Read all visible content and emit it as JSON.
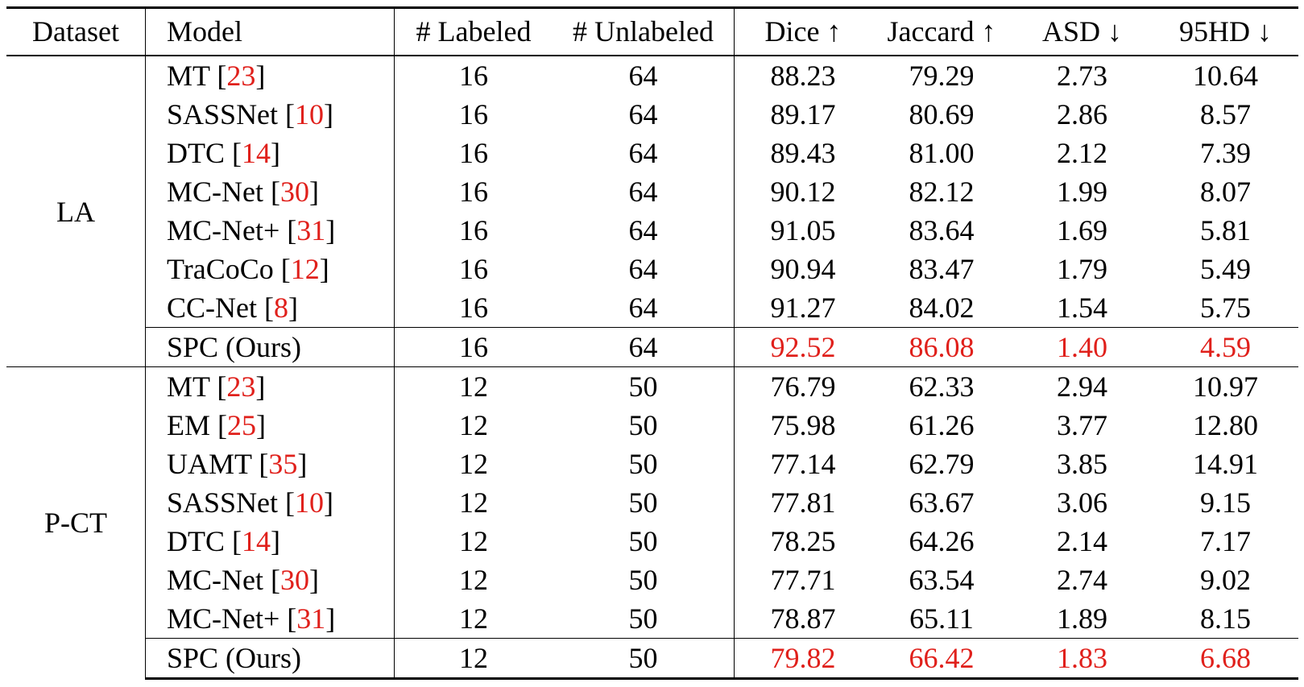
{
  "headers": {
    "dataset": "Dataset",
    "model": "Model",
    "labeled": "# Labeled",
    "unlabeled": "# Unlabeled",
    "dice": "Dice ↑",
    "jaccard": "Jaccard ↑",
    "asd": "ASD ↓",
    "hd95": "95HD ↓"
  },
  "colors": {
    "citation": "#e0201b",
    "ours_best": "#e0201b"
  },
  "groups": [
    {
      "dataset": "LA",
      "rows": [
        {
          "name": "MT",
          "cite": "23",
          "labeled": "16",
          "unlabeled": "64",
          "dice": "88.23",
          "jaccard": "79.29",
          "asd": "2.73",
          "hd95": "10.64",
          "bold": [],
          "ours": false
        },
        {
          "name": "SASSNet",
          "cite": "10",
          "labeled": "16",
          "unlabeled": "64",
          "dice": "89.17",
          "jaccard": "80.69",
          "asd": "2.86",
          "hd95": "8.57",
          "bold": [],
          "ours": false
        },
        {
          "name": "DTC",
          "cite": "14",
          "labeled": "16",
          "unlabeled": "64",
          "dice": "89.43",
          "jaccard": "81.00",
          "asd": "2.12",
          "hd95": "7.39",
          "bold": [],
          "ours": false
        },
        {
          "name": "MC-Net",
          "cite": "30",
          "labeled": "16",
          "unlabeled": "64",
          "dice": "90.12",
          "jaccard": "82.12",
          "asd": "1.99",
          "hd95": "8.07",
          "bold": [],
          "ours": false
        },
        {
          "name": "MC-Net+",
          "cite": "31",
          "labeled": "16",
          "unlabeled": "64",
          "dice": "91.05",
          "jaccard": "83.64",
          "asd": "1.69",
          "hd95": "5.81",
          "bold": [],
          "ours": false
        },
        {
          "name": "TraCoCo",
          "cite": "12",
          "labeled": "16",
          "unlabeled": "64",
          "dice": "90.94",
          "jaccard": "83.47",
          "asd": "1.79",
          "hd95": "5.49",
          "bold": [
            "hd95"
          ],
          "ours": false
        },
        {
          "name": "CC-Net",
          "cite": "8",
          "labeled": "16",
          "unlabeled": "64",
          "dice": "91.27",
          "jaccard": "84.02",
          "asd": "1.54",
          "hd95": "5.75",
          "bold": [
            "dice",
            "jaccard",
            "asd"
          ],
          "ours": false
        },
        {
          "name": "SPC (Ours)",
          "cite": "",
          "labeled": "16",
          "unlabeled": "64",
          "dice": "92.52",
          "jaccard": "86.08",
          "asd": "1.40",
          "hd95": "4.59",
          "bold": [],
          "ours": true
        }
      ]
    },
    {
      "dataset": "P-CT",
      "rows": [
        {
          "name": "MT",
          "cite": "23",
          "labeled": "12",
          "unlabeled": "50",
          "dice": "76.79",
          "jaccard": "62.33",
          "asd": "2.94",
          "hd95": "10.97",
          "bold": [],
          "ours": false
        },
        {
          "name": "EM",
          "cite": "25",
          "labeled": "12",
          "unlabeled": "50",
          "dice": "75.98",
          "jaccard": "61.26",
          "asd": "3.77",
          "hd95": "12.80",
          "bold": [],
          "ours": false
        },
        {
          "name": "UAMT",
          "cite": "35",
          "labeled": "12",
          "unlabeled": "50",
          "dice": "77.14",
          "jaccard": "62.79",
          "asd": "3.85",
          "hd95": "14.91",
          "bold": [],
          "ours": false
        },
        {
          "name": "SASSNet",
          "cite": "10",
          "labeled": "12",
          "unlabeled": "50",
          "dice": "77.81",
          "jaccard": "63.67",
          "asd": "3.06",
          "hd95": "9.15",
          "bold": [],
          "ours": false
        },
        {
          "name": "DTC",
          "cite": "14",
          "labeled": "12",
          "unlabeled": "50",
          "dice": "78.25",
          "jaccard": "64.26",
          "asd": "2.14",
          "hd95": "7.17",
          "bold": [
            "hd95"
          ],
          "ours": false
        },
        {
          "name": "MC-Net",
          "cite": "30",
          "labeled": "12",
          "unlabeled": "50",
          "dice": "77.71",
          "jaccard": "63.54",
          "asd": "2.74",
          "hd95": "9.02",
          "bold": [],
          "ours": false
        },
        {
          "name": "MC-Net+",
          "cite": "31",
          "labeled": "12",
          "unlabeled": "50",
          "dice": "78.87",
          "jaccard": "65.11",
          "asd": "1.89",
          "hd95": "8.15",
          "bold": [
            "dice",
            "jaccard",
            "asd"
          ],
          "ours": false
        },
        {
          "name": "SPC (Ours)",
          "cite": "",
          "labeled": "12",
          "unlabeled": "50",
          "dice": "79.82",
          "jaccard": "66.42",
          "asd": "1.83",
          "hd95": "6.68",
          "bold": [],
          "ours": true
        }
      ]
    }
  ]
}
